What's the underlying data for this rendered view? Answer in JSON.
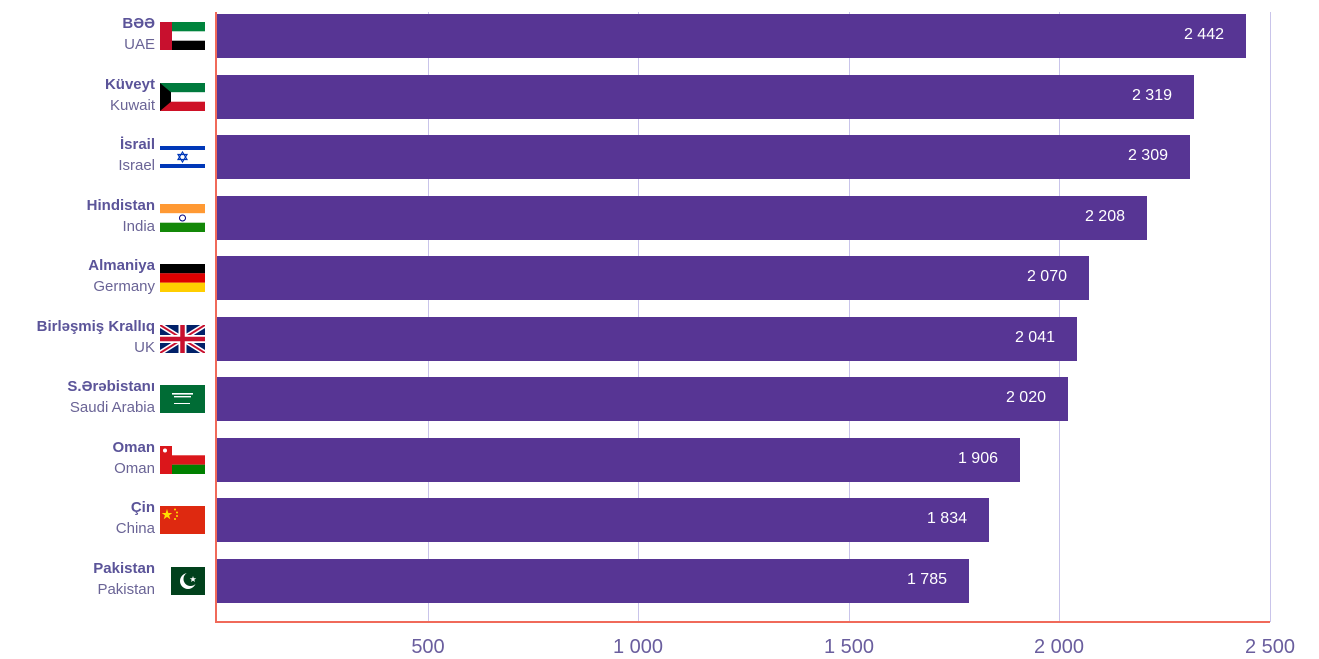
{
  "chart_data": {
    "type": "bar",
    "orientation": "horizontal",
    "categories": [
      {
        "name": "BƏƏ",
        "sub": "UAE",
        "flag": "uae-flag-icon"
      },
      {
        "name": "Küveyt",
        "sub": "Kuwait",
        "flag": "kuwait-flag-icon"
      },
      {
        "name": "İsrail",
        "sub": "Israel",
        "flag": "israel-flag-icon"
      },
      {
        "name": "Hindistan",
        "sub": "India",
        "flag": "india-flag-icon"
      },
      {
        "name": "Almaniya",
        "sub": "Germany",
        "flag": "germany-flag-icon"
      },
      {
        "name": "Birləşmiş Krallıq",
        "sub": "UK",
        "flag": "uk-flag-icon"
      },
      {
        "name": "S.Ərəbistanı",
        "sub": "Saudi Arabia",
        "flag": "saudi-flag-icon"
      },
      {
        "name": "Oman",
        "sub": "Oman",
        "flag": "oman-flag-icon"
      },
      {
        "name": "Çin",
        "sub": "China",
        "flag": "china-flag-icon"
      },
      {
        "name": "Pakistan",
        "sub": "Pakistan",
        "flag": "pakistan-flag-icon"
      }
    ],
    "values": [
      2442,
      2319,
      2309,
      2208,
      2070,
      2041,
      2020,
      1906,
      1834,
      1785
    ],
    "value_labels": [
      "2 442",
      "2 319",
      "2 309",
      "2 208",
      "2 070",
      "2 041",
      "2 020",
      "1 906",
      "1 834",
      "1 785"
    ],
    "xlim": [
      0,
      2500
    ],
    "x_ticks": [
      500,
      1000,
      1500,
      2000,
      2500
    ],
    "x_tick_labels": [
      "500",
      "1 000",
      "1 500",
      "2 000",
      "2 500"
    ],
    "grid": true,
    "colors": {
      "bar": "#573594",
      "axis": "#f06a5a",
      "grid": "#c9c4ea"
    }
  }
}
